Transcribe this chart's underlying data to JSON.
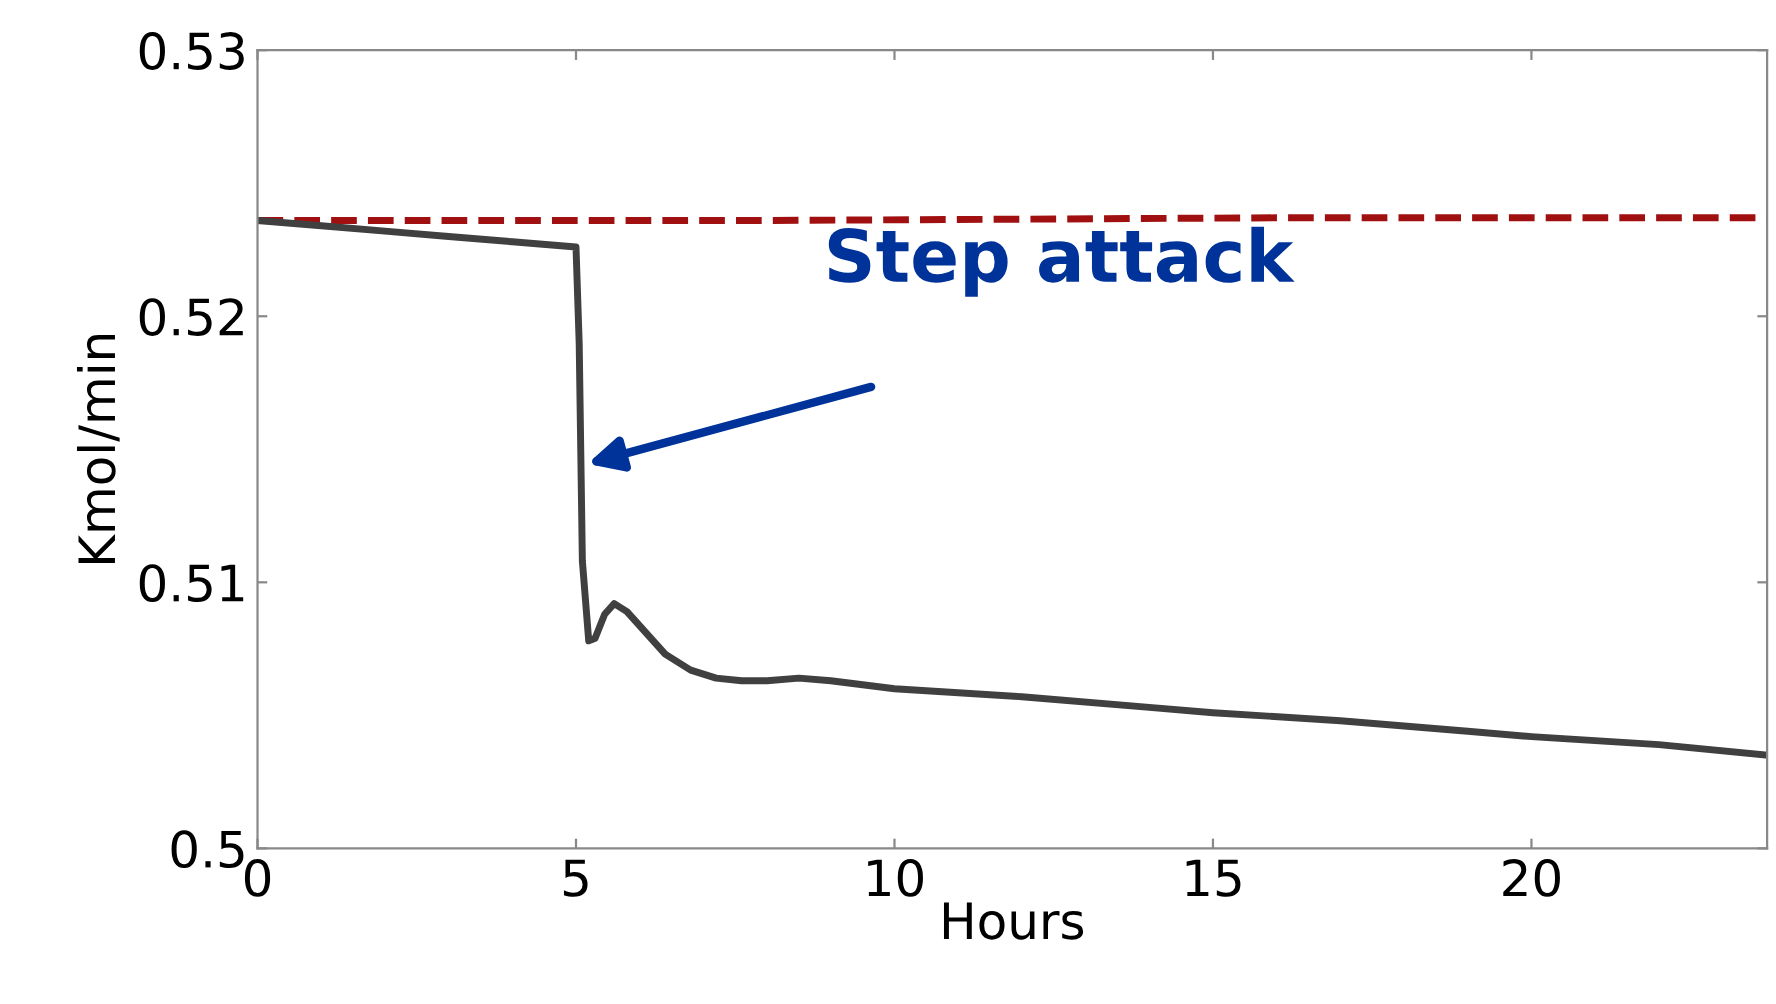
{
  "chart_data": {
    "type": "line",
    "xlabel": "Hours",
    "ylabel": "Kmol/min",
    "xlim": [
      0,
      23.7
    ],
    "xticks": [
      0,
      5,
      10,
      15,
      20
    ],
    "ylim": [
      0.5,
      0.53
    ],
    "yticks": [
      0.5,
      0.51,
      0.52,
      0.53
    ],
    "grid": false,
    "marker": "none",
    "series": [
      {
        "color": "#a01010",
        "line_style": "dashed",
        "x": [
          0,
          8,
          16,
          23.7
        ],
        "values": [
          0.5236,
          0.5236,
          0.5237,
          0.5237
        ]
      },
      {
        "color": "#404040",
        "line_style": "solid",
        "x": [
          0,
          1,
          2,
          3,
          4,
          5,
          5.05,
          5.1,
          5.2,
          5.3,
          5.45,
          5.6,
          5.8,
          6.1,
          6.4,
          6.8,
          7.2,
          7.6,
          8.0,
          8.5,
          9,
          10,
          12,
          14,
          15,
          17,
          19,
          20,
          22,
          23.7
        ],
        "values": [
          0.5236,
          0.5234,
          0.5232,
          0.523,
          0.5228,
          0.5226,
          0.519,
          0.5108,
          0.5078,
          0.5079,
          0.5088,
          0.5092,
          0.5089,
          0.5081,
          0.5073,
          0.5067,
          0.5064,
          0.5063,
          0.5063,
          0.5064,
          0.5063,
          0.506,
          0.5057,
          0.5053,
          0.5051,
          0.5048,
          0.5044,
          0.5042,
          0.5039,
          0.5035
        ]
      }
    ],
    "annotations": [
      "Step attack"
    ]
  }
}
